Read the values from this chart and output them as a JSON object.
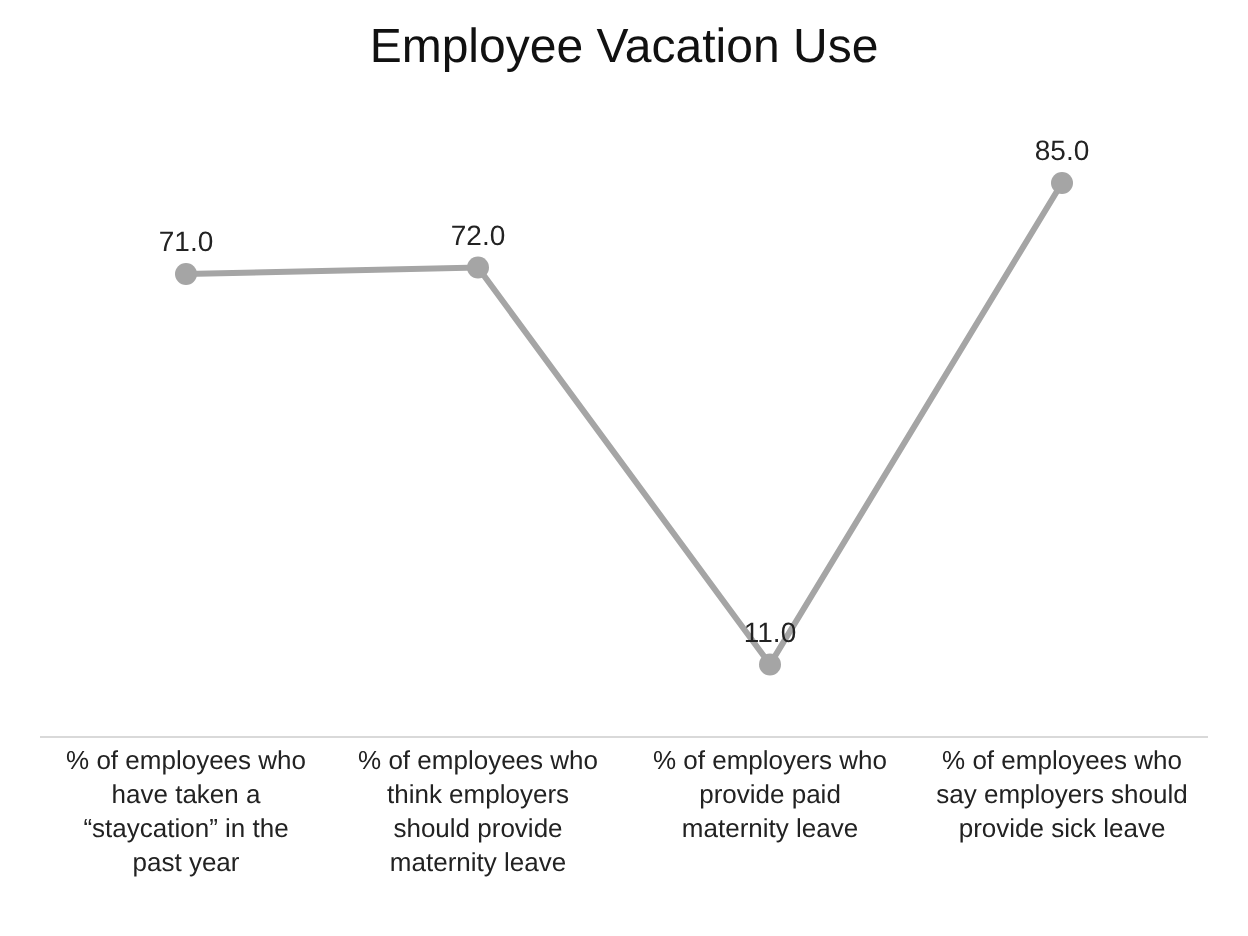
{
  "chart_data": {
    "type": "line",
    "title": "Employee Vacation Use",
    "categories": [
      "% of employees who have taken a “staycation” in the past year",
      "% of employees who think employers should provide maternity leave",
      "% of employers who provide paid maternity leave",
      "% of employees who say employers should provide sick leave"
    ],
    "series": [
      {
        "color": "#a5a5a5",
        "values": [
          71,
          72,
          11,
          85
        ],
        "value_labels": [
          "71.0",
          "72.0",
          "11.0",
          "85.0"
        ]
      }
    ],
    "marker": "circle",
    "line_style": "solid",
    "grid": false
  }
}
